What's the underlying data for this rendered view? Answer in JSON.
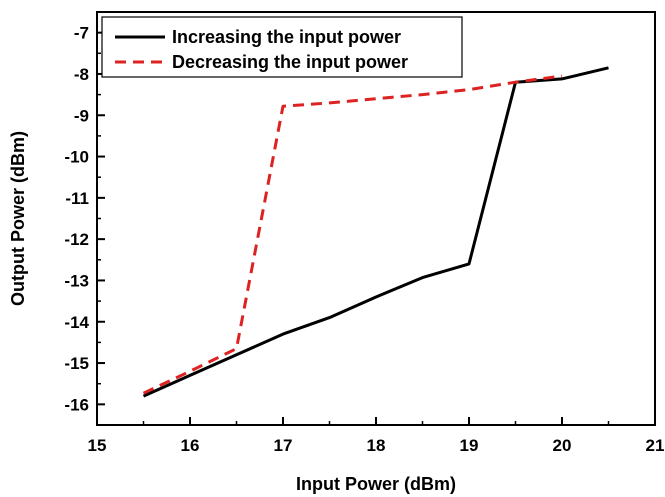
{
  "chart_data": {
    "type": "line",
    "title": "",
    "xlabel": "Input Power (dBm)",
    "ylabel": "Output Power (dBm)",
    "xlim": [
      15,
      21
    ],
    "ylim": [
      -16.5,
      -6.5
    ],
    "xticks": [
      15,
      16,
      17,
      18,
      19,
      20,
      21
    ],
    "yticks": [
      -16,
      -15,
      -14,
      -13,
      -12,
      -11,
      -10,
      -9,
      -8,
      -7
    ],
    "grid": false,
    "legend_position": "top-left",
    "series": [
      {
        "name": "Increasing the input power",
        "color": "#000000",
        "line_style": "solid",
        "x": [
          15.5,
          16.0,
          16.5,
          17.0,
          17.5,
          18.0,
          18.5,
          19.0,
          19.5,
          20.0,
          20.5
        ],
        "y": [
          -15.8,
          -15.3,
          -14.8,
          -14.3,
          -13.9,
          -13.4,
          -12.93,
          -12.6,
          -8.2,
          -8.12,
          -7.85
        ]
      },
      {
        "name": "Decreasing the input power",
        "color": "#dd2222",
        "line_style": "dashed",
        "x": [
          15.5,
          16.0,
          16.5,
          17.0,
          17.5,
          18.0,
          18.5,
          19.0,
          19.5,
          20.0
        ],
        "y": [
          -15.73,
          -15.2,
          -14.65,
          -8.78,
          -8.7,
          -8.6,
          -8.5,
          -8.38,
          -8.2,
          -8.05
        ]
      }
    ]
  }
}
